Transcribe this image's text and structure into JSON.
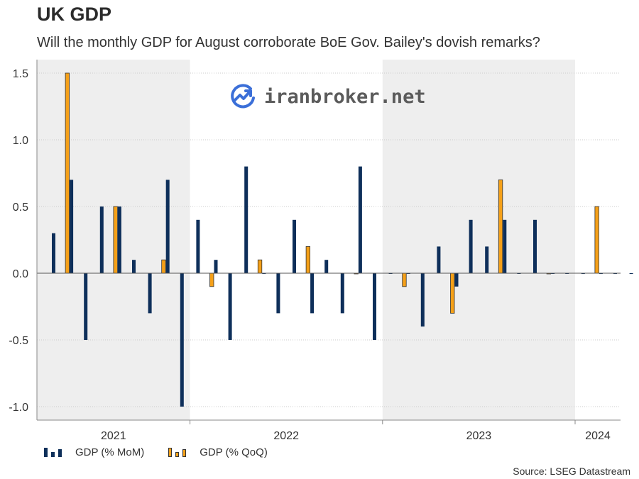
{
  "title": "UK GDP",
  "subtitle": "Will the monthly GDP for August corroborate BoE Gov. Bailey's dovish remarks?",
  "source": "Source: LSEG Datastream",
  "watermark": "iranbroker.net",
  "colors": {
    "mom": "#0e2f5a",
    "qoq": "#f5a018",
    "shade": "#eeeeee",
    "watermark_icon": "#3b6fd8"
  },
  "chart_data": {
    "type": "bar",
    "title": "UK GDP",
    "subtitle": "Will the monthly GDP for August corroborate BoE Gov. Bailey's dovish remarks?",
    "xlabel": "",
    "ylabel": "",
    "ylim": [
      -1.05,
      1.5
    ],
    "yticks": [
      -1.0,
      -0.5,
      0.0,
      0.5,
      1.0,
      1.5
    ],
    "ytick_labels": [
      "-1.0",
      "-0.5",
      "0.0",
      "0.5",
      "1.0",
      "1.5"
    ],
    "grid": true,
    "legend": "bottom-left",
    "years": [
      "2021",
      "2022",
      "2023",
      "2024"
    ],
    "shaded_years": [
      "2021",
      "2023"
    ],
    "x_start": "2021-04",
    "categories": [
      "2021-04",
      "2021-05",
      "2021-06",
      "2021-07",
      "2021-08",
      "2021-09",
      "2021-10",
      "2021-11",
      "2021-12",
      "2022-01",
      "2022-02",
      "2022-03",
      "2022-04",
      "2022-05",
      "2022-06",
      "2022-07",
      "2022-08",
      "2022-09",
      "2022-10",
      "2022-11",
      "2022-12",
      "2023-01",
      "2023-02",
      "2023-03",
      "2023-04",
      "2023-05",
      "2023-06",
      "2023-07",
      "2023-08",
      "2023-09",
      "2023-10",
      "2023-11",
      "2023-12",
      "2024-01",
      "2024-02",
      "2024-03",
      "2024-04",
      "2024-05",
      "2024-06",
      "2024-07"
    ],
    "series": [
      {
        "name": "GDP (% MoM)",
        "values": [
          0.3,
          0.7,
          -0.5,
          0.5,
          0.5,
          0.1,
          -0.3,
          0.7,
          -1.0,
          0.4,
          0.1,
          -0.5,
          0.8,
          0.0,
          -0.3,
          0.4,
          -0.3,
          0.1,
          -0.3,
          0.8,
          -0.5,
          0.0,
          0.0,
          -0.4,
          0.2,
          -0.1,
          0.4,
          0.2,
          0.4,
          0.0,
          0.4,
          0.0,
          0.0,
          0.0,
          0.0,
          0.0,
          0.0,
          0.0,
          0.0,
          0.0
        ]
      },
      {
        "name": "GDP (% QoQ)",
        "values": [
          null,
          1.5,
          null,
          null,
          0.5,
          null,
          null,
          0.1,
          null,
          null,
          -0.1,
          null,
          null,
          0.1,
          null,
          null,
          0.2,
          null,
          null,
          0.0,
          null,
          null,
          -0.1,
          null,
          null,
          -0.3,
          null,
          null,
          0.7,
          null,
          null,
          0.0,
          null,
          null,
          0.5,
          null,
          null,
          0.0,
          null,
          null
        ]
      }
    ]
  }
}
